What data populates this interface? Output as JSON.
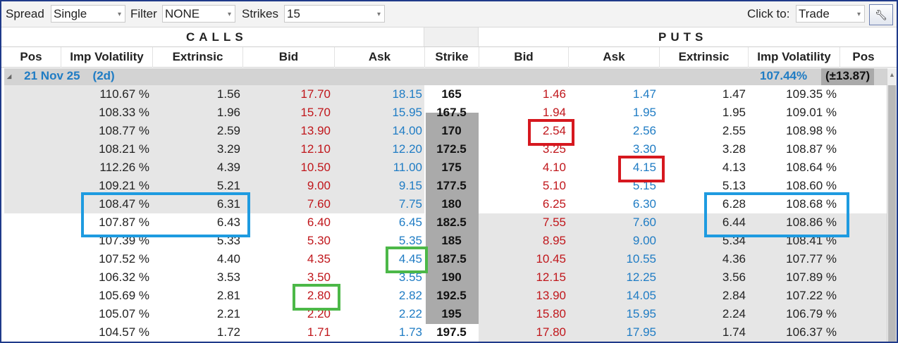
{
  "toolbar": {
    "spread_label": "Spread",
    "spread_value": "Single",
    "filter_label": "Filter",
    "filter_value": "NONE",
    "strikes_label": "Strikes",
    "strikes_value": "15",
    "click_to_label": "Click to:",
    "click_to_value": "Trade",
    "tool_icon": "wrench-icon"
  },
  "sections": {
    "calls": "CALLS",
    "puts": "PUTS"
  },
  "columns": [
    "Pos",
    "Imp Volatility",
    "Extrinsic",
    "Bid",
    "Ask",
    "Strike",
    "Bid",
    "Ask",
    "Extrinsic",
    "Imp Volatility",
    "Pos"
  ],
  "expiry": {
    "date": "21 Nov 25",
    "days": "(2d)",
    "iv": "107.44%",
    "iv_change": "(±13.87)"
  },
  "rows": [
    {
      "call_iv": "110.67 %",
      "call_ext": "1.56",
      "call_bid": "17.70",
      "call_ask": "18.15",
      "strike": "165",
      "put_bid": "1.46",
      "put_ask": "1.47",
      "put_ext": "1.47",
      "put_iv": "109.35 %"
    },
    {
      "call_iv": "108.33 %",
      "call_ext": "1.96",
      "call_bid": "15.70",
      "call_ask": "15.95",
      "strike": "167.5",
      "put_bid": "1.94",
      "put_ask": "1.95",
      "put_ext": "1.95",
      "put_iv": "109.01 %"
    },
    {
      "call_iv": "108.77 %",
      "call_ext": "2.59",
      "call_bid": "13.90",
      "call_ask": "14.00",
      "strike": "170",
      "put_bid": "2.54",
      "put_ask": "2.56",
      "put_ext": "2.55",
      "put_iv": "108.98 %"
    },
    {
      "call_iv": "108.21 %",
      "call_ext": "3.29",
      "call_bid": "12.10",
      "call_ask": "12.20",
      "strike": "172.5",
      "put_bid": "3.25",
      "put_ask": "3.30",
      "put_ext": "3.28",
      "put_iv": "108.87 %"
    },
    {
      "call_iv": "112.26 %",
      "call_ext": "4.39",
      "call_bid": "10.50",
      "call_ask": "11.00",
      "strike": "175",
      "put_bid": "4.10",
      "put_ask": "4.15",
      "put_ext": "4.13",
      "put_iv": "108.64 %"
    },
    {
      "call_iv": "109.21 %",
      "call_ext": "5.21",
      "call_bid": "9.00",
      "call_ask": "9.15",
      "strike": "177.5",
      "put_bid": "5.10",
      "put_ask": "5.15",
      "put_ext": "5.13",
      "put_iv": "108.60 %"
    },
    {
      "call_iv": "108.47 %",
      "call_ext": "6.31",
      "call_bid": "7.60",
      "call_ask": "7.75",
      "strike": "180",
      "put_bid": "6.25",
      "put_ask": "6.30",
      "put_ext": "6.28",
      "put_iv": "108.68 %"
    },
    {
      "call_iv": "107.87 %",
      "call_ext": "6.43",
      "call_bid": "6.40",
      "call_ask": "6.45",
      "strike": "182.5",
      "put_bid": "7.55",
      "put_ask": "7.60",
      "put_ext": "6.44",
      "put_iv": "108.86 %"
    },
    {
      "call_iv": "107.39 %",
      "call_ext": "5.33",
      "call_bid": "5.30",
      "call_ask": "5.35",
      "strike": "185",
      "put_bid": "8.95",
      "put_ask": "9.00",
      "put_ext": "5.34",
      "put_iv": "108.41 %"
    },
    {
      "call_iv": "107.52 %",
      "call_ext": "4.40",
      "call_bid": "4.35",
      "call_ask": "4.45",
      "strike": "187.5",
      "put_bid": "10.45",
      "put_ask": "10.55",
      "put_ext": "4.36",
      "put_iv": "107.77 %"
    },
    {
      "call_iv": "106.32 %",
      "call_ext": "3.53",
      "call_bid": "3.50",
      "call_ask": "3.55",
      "strike": "190",
      "put_bid": "12.15",
      "put_ask": "12.25",
      "put_ext": "3.56",
      "put_iv": "107.89 %"
    },
    {
      "call_iv": "105.69 %",
      "call_ext": "2.81",
      "call_bid": "2.80",
      "call_ask": "2.82",
      "strike": "192.5",
      "put_bid": "13.90",
      "put_ask": "14.05",
      "put_ext": "2.84",
      "put_iv": "107.22 %"
    },
    {
      "call_iv": "105.07 %",
      "call_ext": "2.21",
      "call_bid": "2.20",
      "call_ask": "2.22",
      "strike": "195",
      "put_bid": "15.80",
      "put_ask": "15.95",
      "put_ext": "2.24",
      "put_iv": "106.79 %"
    },
    {
      "call_iv": "104.57 %",
      "call_ext": "1.72",
      "call_bid": "1.71",
      "call_ask": "1.73",
      "strike": "197.5",
      "put_bid": "17.80",
      "put_ask": "17.95",
      "put_ext": "1.74",
      "put_iv": "106.37 %"
    }
  ],
  "colors": {
    "bid": "#c0161b",
    "ask": "#1f7cc4",
    "highlight_red": "#d6181f",
    "highlight_blue": "#1e9be0",
    "highlight_green": "#4cb848"
  }
}
